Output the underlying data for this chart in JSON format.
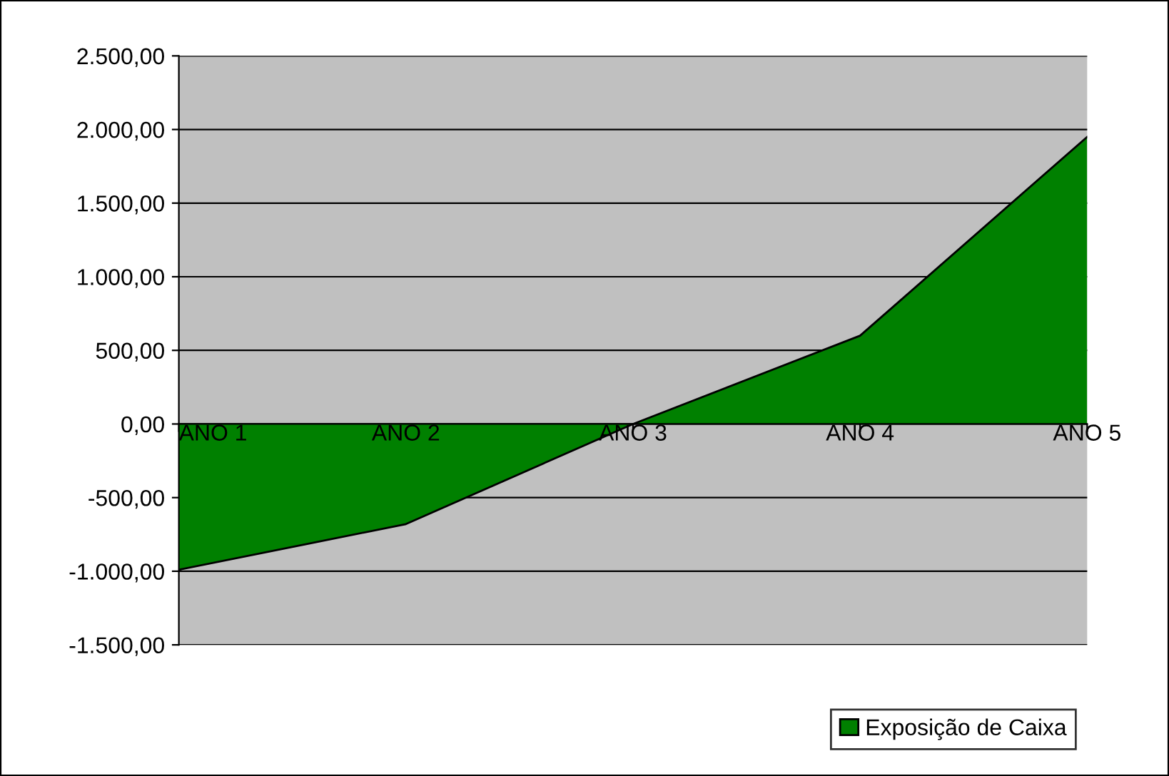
{
  "chart_data": {
    "type": "area",
    "categories": [
      "ANO 1",
      "ANO 2",
      "ANO 3",
      "ANO 4",
      "ANO 5"
    ],
    "series": [
      {
        "name": "Exposição de Caixa",
        "color": "#008000",
        "values": [
          -990,
          -680,
          0,
          600,
          1950
        ]
      }
    ],
    "ylim": [
      -1500,
      2500
    ],
    "yticks": [
      {
        "value": -1500,
        "label": "-1.500,00"
      },
      {
        "value": -1000,
        "label": "-1.000,00"
      },
      {
        "value": -500,
        "label": "-500,00"
      },
      {
        "value": 0,
        "label": "0,00"
      },
      {
        "value": 500,
        "label": "500,00"
      },
      {
        "value": 1000,
        "label": "1.000,00"
      },
      {
        "value": 1500,
        "label": "1.500,00"
      },
      {
        "value": 2000,
        "label": "2.000,00"
      },
      {
        "value": 2500,
        "label": "2.500,00"
      }
    ],
    "grid": "y",
    "legend": "bottom right"
  }
}
